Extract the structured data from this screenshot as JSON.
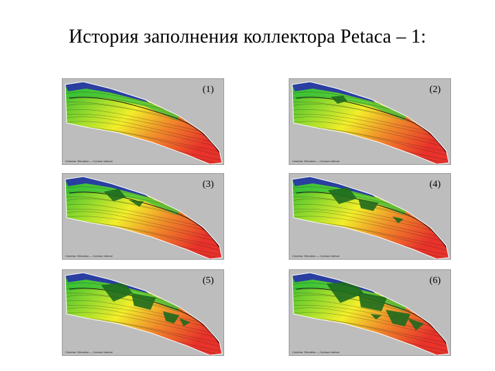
{
  "slide": {
    "title": "История заполнения коллектора Petaca – 1:"
  },
  "panels": [
    {
      "label": "(1)",
      "caption": "Colorbar: Elevation — Contour interval"
    },
    {
      "label": "(2)",
      "caption": "Colorbar: Elevation — Contour interval"
    },
    {
      "label": "(3)",
      "caption": "Colorbar: Elevation — Contour interval"
    },
    {
      "label": "(4)",
      "caption": "Colorbar: Elevation — Contour interval"
    },
    {
      "label": "(5)",
      "caption": "Colorbar: Elevation — Contour interval"
    },
    {
      "label": "(6)",
      "caption": "Colorbar: Elevation — Contour interval"
    }
  ],
  "colors": {
    "background_panel": "#bdbdbd",
    "low": "#2a3fa0",
    "green": "#2fb82f",
    "yellow": "#f2ee2a",
    "orange": "#f08a2a",
    "red": "#e8322a",
    "fill_dark_green": "#1e6a1e"
  }
}
